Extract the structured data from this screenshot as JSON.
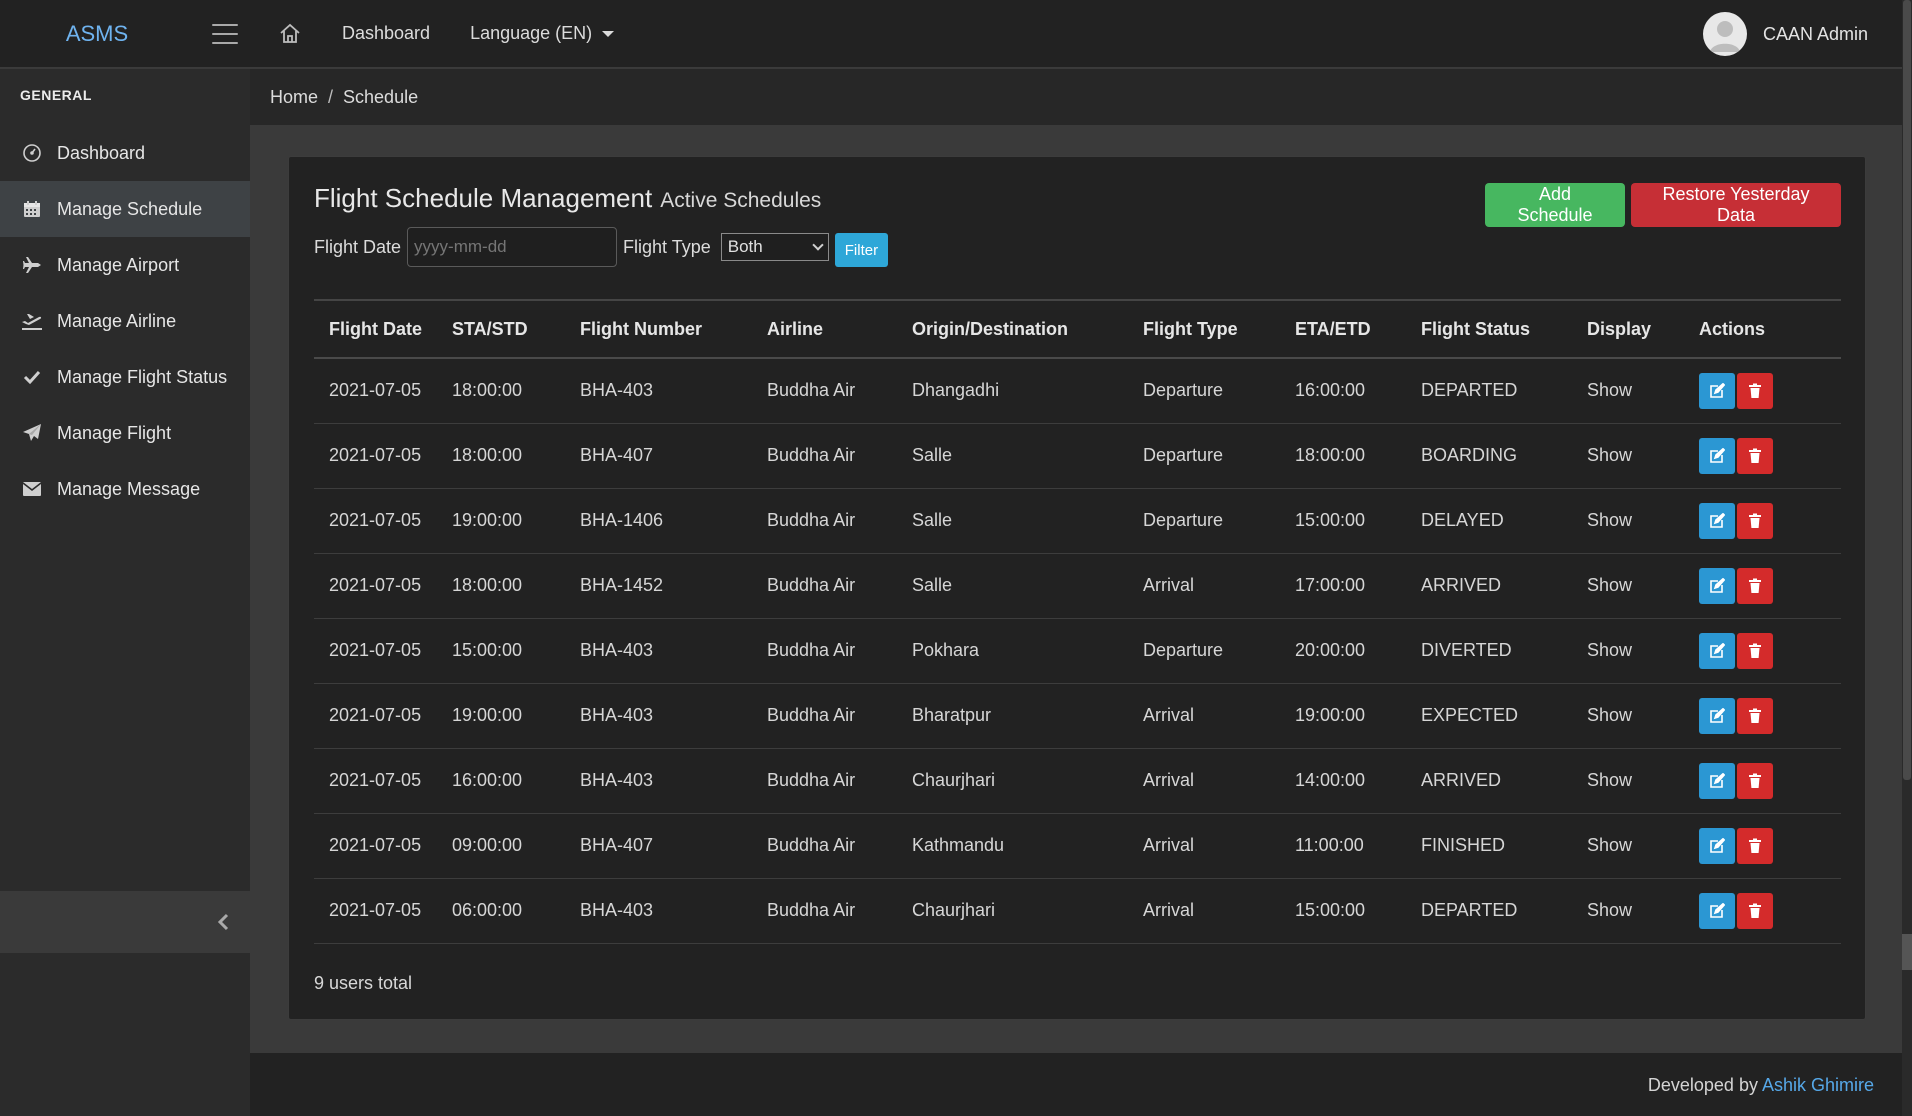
{
  "topbar": {
    "brand": "ASMS",
    "nav": {
      "dashboard": "Dashboard",
      "language": "Language (EN)"
    },
    "user": {
      "name": "CAAN Admin"
    }
  },
  "sidebar": {
    "section": "GENERAL",
    "items": [
      {
        "label": "Dashboard",
        "icon": "gauge-icon"
      },
      {
        "label": "Manage Schedule",
        "icon": "calendar-icon",
        "active": true
      },
      {
        "label": "Manage Airport",
        "icon": "plane-icon"
      },
      {
        "label": "Manage Airline",
        "icon": "plane-departure-icon"
      },
      {
        "label": "Manage Flight Status",
        "icon": "check-icon"
      },
      {
        "label": "Manage Flight",
        "icon": "paper-plane-icon"
      },
      {
        "label": "Manage Message",
        "icon": "envelope-icon"
      }
    ]
  },
  "breadcrumb": {
    "home": "Home",
    "separator": "/",
    "current": "Schedule"
  },
  "card": {
    "title": "Flight Schedule Management",
    "subtitle": "Active Schedules",
    "add_button": "Add Schedule",
    "restore_button": "Restore Yesterday Data"
  },
  "filters": {
    "date_label": "Flight Date",
    "date_placeholder": "yyyy-mm-dd",
    "type_label": "Flight Type",
    "type_value": "Both",
    "filter_button": "Filter"
  },
  "table": {
    "headers": [
      "Flight Date",
      "STA/STD",
      "Flight Number",
      "Airline",
      "Origin/Destination",
      "Flight Type",
      "ETA/ETD",
      "Flight Status",
      "Display",
      "Actions"
    ],
    "rows": [
      [
        "2021-07-05",
        "18:00:00",
        "BHA-403",
        "Buddha Air",
        "Dhangadhi",
        "Departure",
        "16:00:00",
        "DEPARTED",
        "Show"
      ],
      [
        "2021-07-05",
        "18:00:00",
        "BHA-407",
        "Buddha Air",
        "Salle",
        "Departure",
        "18:00:00",
        "BOARDING",
        "Show"
      ],
      [
        "2021-07-05",
        "19:00:00",
        "BHA-1406",
        "Buddha Air",
        "Salle",
        "Departure",
        "15:00:00",
        "DELAYED",
        "Show"
      ],
      [
        "2021-07-05",
        "18:00:00",
        "BHA-1452",
        "Buddha Air",
        "Salle",
        "Arrival",
        "17:00:00",
        "ARRIVED",
        "Show"
      ],
      [
        "2021-07-05",
        "15:00:00",
        "BHA-403",
        "Buddha Air",
        "Pokhara",
        "Departure",
        "20:00:00",
        "DIVERTED",
        "Show"
      ],
      [
        "2021-07-05",
        "19:00:00",
        "BHA-403",
        "Buddha Air",
        "Bharatpur",
        "Arrival",
        "19:00:00",
        "EXPECTED",
        "Show"
      ],
      [
        "2021-07-05",
        "16:00:00",
        "BHA-403",
        "Buddha Air",
        "Chaurjhari",
        "Arrival",
        "14:00:00",
        "ARRIVED",
        "Show"
      ],
      [
        "2021-07-05",
        "09:00:00",
        "BHA-407",
        "Buddha Air",
        "Kathmandu",
        "Arrival",
        "11:00:00",
        "FINISHED",
        "Show"
      ],
      [
        "2021-07-05",
        "06:00:00",
        "BHA-403",
        "Buddha Air",
        "Chaurjhari",
        "Arrival",
        "15:00:00",
        "DEPARTED",
        "Show"
      ]
    ],
    "total_text": "9 users total"
  },
  "footer": {
    "prefix": "Developed by",
    "author": "Ashik Ghimire"
  },
  "colors": {
    "accent": "#2ea7d8",
    "success": "#47b760",
    "danger": "#c62f36",
    "link": "#56a8e8"
  }
}
